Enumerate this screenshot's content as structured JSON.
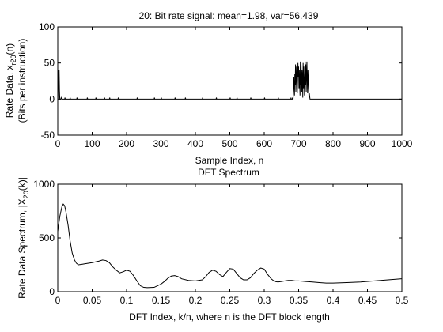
{
  "chart_data": [
    {
      "type": "line",
      "title": "20: Bit rate signal: mean=1.98, var=56.439",
      "xlabel": "Sample Index, n",
      "ylabel_lines": [
        "Rate Data, x_{r20}(n)",
        "(Bits per instruction)"
      ],
      "xlim": [
        0,
        1000
      ],
      "ylim": [
        -50,
        100
      ],
      "xticks": [
        0,
        100,
        200,
        300,
        400,
        500,
        600,
        700,
        800,
        900,
        1000
      ],
      "yticks": [
        -50,
        0,
        50,
        100
      ],
      "xtick_labels": [
        "0",
        "100",
        "200",
        "300",
        "400",
        "500",
        "600",
        "700",
        "800",
        "900",
        "1000"
      ],
      "ytick_labels": [
        "-50",
        "0",
        "50",
        "100"
      ],
      "grid": false,
      "series": [
        {
          "x": [
            0,
            1,
            2,
            3,
            4,
            5,
            6,
            7,
            9,
            10,
            12,
            20,
            21,
            22,
            30,
            35,
            36,
            37,
            45,
            55,
            56,
            57,
            70,
            85,
            86,
            87,
            100,
            110,
            111,
            112,
            125,
            135,
            136,
            137,
            145,
            150,
            151,
            152,
            160,
            175,
            176,
            177,
            190,
            230,
            231,
            232,
            250,
            280,
            281,
            282,
            290,
            300,
            301,
            302,
            320,
            340,
            341,
            342,
            360,
            370,
            371,
            372,
            390,
            420,
            421,
            422,
            440,
            460,
            461,
            462,
            480,
            500,
            501,
            502,
            510,
            520,
            521,
            522,
            540,
            560,
            561,
            562,
            580,
            600,
            601,
            602,
            620,
            640,
            641,
            642,
            660,
            670,
            675,
            676,
            677,
            680,
            681,
            682,
            684,
            685,
            686,
            688,
            689,
            690,
            691,
            692,
            694,
            695,
            696,
            698,
            699,
            700,
            701,
            702,
            704,
            705,
            706,
            707,
            709,
            710,
            711,
            712,
            713,
            714,
            715,
            716,
            717,
            719,
            720,
            721,
            722,
            724,
            725,
            726,
            727,
            729,
            730,
            731,
            733,
            735,
            740,
            760,
            800,
            850,
            900,
            950,
            990,
            992,
            993,
            995,
            997,
            1000
          ],
          "y": [
            0,
            40,
            38,
            0,
            40,
            12,
            0,
            0,
            0,
            2,
            0,
            0,
            2,
            0,
            0,
            0,
            2,
            0,
            0,
            0,
            2,
            0,
            0,
            0,
            2,
            0,
            0,
            0,
            2,
            0,
            0,
            0,
            2,
            0,
            0,
            0,
            2,
            0,
            0,
            0,
            2,
            0,
            0,
            0,
            2,
            0,
            0,
            0,
            2,
            0,
            0,
            0,
            2,
            0,
            0,
            0,
            2,
            0,
            0,
            0,
            2,
            0,
            0,
            0,
            2,
            0,
            0,
            0,
            2,
            0,
            0,
            0,
            2,
            0,
            0,
            0,
            2,
            0,
            0,
            0,
            2,
            0,
            0,
            0,
            2,
            0,
            0,
            0,
            2,
            0,
            0,
            0,
            0,
            2,
            0,
            0,
            2,
            0,
            0,
            15,
            30,
            5,
            35,
            20,
            48,
            10,
            45,
            25,
            8,
            50,
            30,
            45,
            15,
            40,
            5,
            52,
            20,
            48,
            10,
            40,
            30,
            2,
            50,
            15,
            45,
            25,
            5,
            52,
            20,
            48,
            10,
            52,
            25,
            8,
            40,
            15,
            2,
            8,
            0,
            0,
            0,
            0,
            0,
            0,
            0,
            0,
            0,
            0,
            0,
            0,
            0,
            0
          ]
        }
      ]
    },
    {
      "type": "line",
      "title": "DFT Spectrum",
      "xlabel": "DFT Index, k/n, where n is the DFT block length",
      "ylabel": "Rate Data Spectrum, |X_{20}(k)|",
      "xlim": [
        0,
        0.5
      ],
      "ylim": [
        0,
        1000
      ],
      "xticks": [
        0,
        0.05,
        0.1,
        0.15,
        0.2,
        0.25,
        0.3,
        0.35,
        0.4,
        0.45,
        0.5
      ],
      "yticks": [
        0,
        500,
        1000
      ],
      "xtick_labels": [
        "0",
        "0.05",
        "0.1",
        "0.15",
        "0.2",
        "0.25",
        "0.3",
        "0.35",
        "0.4",
        "0.45",
        "0.5"
      ],
      "ytick_labels": [
        "0",
        "500",
        "1000"
      ],
      "grid": false,
      "series": [
        {
          "x": [
            0,
            0.003,
            0.006,
            0.008,
            0.01,
            0.012,
            0.015,
            0.018,
            0.021,
            0.024,
            0.027,
            0.03,
            0.035,
            0.04,
            0.05,
            0.06,
            0.065,
            0.07,
            0.075,
            0.08,
            0.085,
            0.09,
            0.095,
            0.1,
            0.105,
            0.11,
            0.115,
            0.12,
            0.125,
            0.13,
            0.14,
            0.15,
            0.155,
            0.16,
            0.165,
            0.17,
            0.175,
            0.18,
            0.19,
            0.2,
            0.21,
            0.215,
            0.22,
            0.225,
            0.23,
            0.235,
            0.24,
            0.245,
            0.25,
            0.255,
            0.26,
            0.265,
            0.27,
            0.275,
            0.28,
            0.285,
            0.29,
            0.295,
            0.3,
            0.305,
            0.31,
            0.315,
            0.32,
            0.325,
            0.33,
            0.335,
            0.34,
            0.345,
            0.35,
            0.36,
            0.37,
            0.38,
            0.39,
            0.4,
            0.42,
            0.44,
            0.46,
            0.48,
            0.5
          ],
          "y": [
            560,
            700,
            790,
            815,
            800,
            740,
            620,
            470,
            360,
            300,
            265,
            250,
            255,
            260,
            270,
            285,
            295,
            290,
            270,
            230,
            200,
            175,
            185,
            200,
            190,
            150,
            100,
            55,
            40,
            38,
            40,
            70,
            95,
            125,
            145,
            150,
            140,
            120,
            105,
            100,
            110,
            140,
            180,
            200,
            190,
            160,
            140,
            180,
            215,
            210,
            170,
            130,
            110,
            110,
            130,
            170,
            200,
            220,
            210,
            160,
            120,
            95,
            90,
            95,
            100,
            105,
            105,
            100,
            100,
            95,
            90,
            85,
            80,
            80,
            85,
            90,
            100,
            110,
            120
          ]
        }
      ]
    }
  ]
}
